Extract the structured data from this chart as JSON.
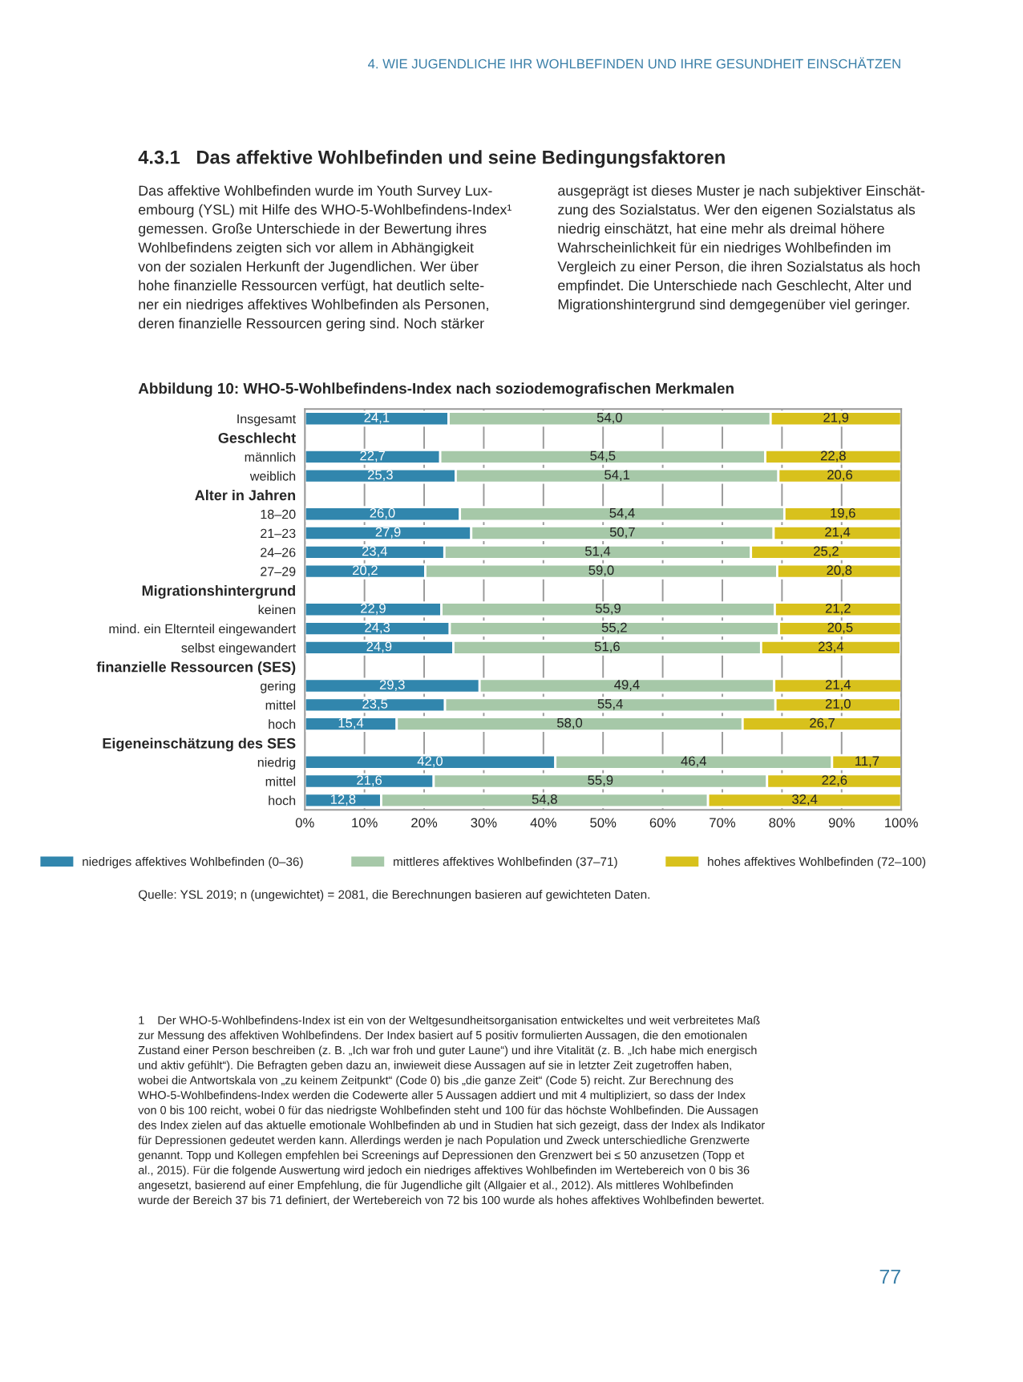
{
  "chart_data": {
    "type": "bar",
    "orientation": "horizontal",
    "stacked": true,
    "title": "Abbildung 10: WHO-5-Wohlbefindens-Index nach soziodemografischen Merkmalen",
    "categories": [
      "Insgesamt",
      "Geschlecht",
      "männlich",
      "weiblich",
      "Alter in Jahren",
      "18–20",
      "21–23",
      "24–26",
      "27–29",
      "Migrationshintergrund",
      "keinen",
      "mind. ein Elternteil eingewandert",
      "selbst eingewandert",
      "finanzielle Ressourcen (SES)",
      "gering",
      "mittel",
      "hoch",
      "Eigeneinschätzung des SES",
      "niedrig",
      "mittel",
      "hoch"
    ],
    "series": [
      {
        "name": "niedriges affektives Wohlbefinden (0–36)",
        "color": "#3186ad",
        "values": [
          24.1,
          null,
          22.7,
          25.3,
          null,
          26.0,
          27.9,
          23.4,
          20.2,
          null,
          22.9,
          24.3,
          24.9,
          null,
          29.3,
          23.5,
          15.4,
          null,
          42.0,
          21.6,
          12.8
        ],
        "value_labels": [
          "24,1",
          null,
          "22,7",
          "25,3",
          null,
          "26,0",
          "27,9",
          "23,4",
          "20,2",
          null,
          "22,9",
          "24,3",
          "24,9",
          null,
          "29,3",
          "23,5",
          "15,4",
          null,
          "42,0",
          "21,6",
          "12,8"
        ]
      },
      {
        "name": "mittleres affektives Wohlbefinden (37–71)",
        "color": "#a6c8a8",
        "values": [
          54.0,
          null,
          54.5,
          54.1,
          null,
          54.4,
          50.7,
          51.4,
          59.0,
          null,
          55.9,
          55.2,
          51.6,
          null,
          49.4,
          55.4,
          58.0,
          null,
          46.4,
          55.9,
          54.8
        ],
        "value_labels": [
          "54,0",
          null,
          "54,5",
          "54,1",
          null,
          "54,4",
          "50,7",
          "51,4",
          "59,0",
          null,
          "55,9",
          "55,2",
          "51,6",
          null,
          "49,4",
          "55,4",
          "58,0",
          null,
          "46,4",
          "55,9",
          "54,8"
        ]
      },
      {
        "name": "hohes affektives Wohlbefinden (72–100)",
        "color": "#d8c11c",
        "values": [
          21.9,
          null,
          22.8,
          20.6,
          null,
          19.6,
          21.4,
          25.2,
          20.8,
          null,
          21.2,
          20.5,
          23.4,
          null,
          21.4,
          21.0,
          26.7,
          null,
          11.7,
          22.6,
          32.4
        ],
        "value_labels": [
          "21,9",
          null,
          "22,8",
          "20,6",
          null,
          "19,6",
          "21,4",
          "25,2",
          "20,8",
          null,
          "21,2",
          "20,5",
          "23,4",
          null,
          "21,4",
          "21,0",
          "26,7",
          null,
          "11,7",
          "22,6",
          "32,4"
        ]
      }
    ],
    "xlim": [
      0,
      100
    ],
    "xticks": [
      {
        "value": 0,
        "label": "0%"
      },
      {
        "value": 10,
        "label": "10%"
      },
      {
        "value": 20,
        "label": "20%"
      },
      {
        "value": 30,
        "label": "30%"
      },
      {
        "value": 40,
        "label": "40%"
      },
      {
        "value": 50,
        "label": "50%"
      },
      {
        "value": 60,
        "label": "60%"
      },
      {
        "value": 70,
        "label": "70%"
      },
      {
        "value": 80,
        "label": "80%"
      },
      {
        "value": 90,
        "label": "90%"
      },
      {
        "value": 100,
        "label": "100%"
      }
    ],
    "grid": "x",
    "legend": "bottom",
    "annotations": [
      "4. WIE JUGENDLICHE IHR WOHLBEFINDEN UND IHRE GESUNDHEIT EINSCHÄTZEN",
      "4.3.1   Das affektive Wohlbefinden und seine Bedingungsfaktoren",
      "Das affektive Wohlbefinden wurde im Youth Survey Lux-\nembourg (YSL) mit Hilfe des WHO-5-Wohlbefindens-Index¹\ngemessen. Große Unterschiede in der Bewertung ihres\nWohlbefindens zeigten sich vor allem in Abhängigkeit\nvon der sozialen Herkunft der Jugendlichen. Wer über\nhohe finanzielle Ressourcen verfügt, hat deutlich selte-\nner ein niedriges affektives Wohlbefinden als Personen,\nderen finanzielle Ressourcen gering sind. Noch stärker",
      "ausgeprägt ist dieses Muster je nach subjektiver Einschät-\nzung des Sozialstatus. Wer den eigenen Sozialstatus als\nniedrig einschätzt, hat eine mehr als dreimal höhere\nWahrscheinlichkeit für ein niedriges Wohlbefinden im\nVergleich zu einer Person, die ihren Sozialstatus als hoch\nempfindet. Die Unterschiede nach Geschlecht, Alter und\nMigrationshintergrund sind demgegenüber viel geringer.",
      "Quelle: YSL 2019; n (ungewichtet) = 2081, die Berechnungen basieren auf gewichteten Daten.",
      "1    Der WHO-5-Wohlbefindens-Index ist ein von der Weltgesundheitsorganisation entwickeltes und weit verbreitetes Maß\nzur Messung des affektiven Wohlbefindens. Der Index basiert auf 5 positiv formulierten Aussagen, die den emotionalen\nZustand einer Person beschreiben (z. B. „Ich war froh und guter Laune“) und ihre Vitalität (z. B. „Ich habe mich energisch\nund aktiv gefühlt“). Die Befragten geben dazu an, inwieweit diese Aussagen auf sie in letzter Zeit zugetroffen haben,\nwobei die Antwortskala von „zu keinem Zeitpunkt“ (Code 0) bis „die ganze Zeit“ (Code 5) reicht. Zur Berechnung des\nWHO-5-Wohlbefindens-Index werden die Codewerte aller 5 Aussagen addiert und mit 4 multipliziert, so dass der Index\nvon 0 bis 100 reicht, wobei 0 für das niedrigste Wohlbefinden steht und 100 für das höchste Wohlbefinden. Die Aussagen\ndes Index zielen auf das aktuelle emotionale Wohlbefinden ab und in Studien hat sich gezeigt, dass der Index als Indikator\nfür Depressionen gedeutet werden kann. Allerdings werden je nach Population und Zweck unterschiedliche Grenzwerte\ngenannt. Topp und Kollegen empfehlen bei Screenings auf Depressionen den Grenzwert bei ≤ 50 anzusetzen (Topp et\nal., 2015). Für die folgende Auswertung wird jedoch ein niedriges affektives Wohlbefinden im Wertebereich von 0 bis 36\nangesetzt, basierend auf einer Empfehlung, die für Jugendliche gilt (Allgaier et al., 2012). Als mittleres Wohlbefinden\nwurde der Bereich 37 bis 71 definiert, der Wertebereich von 72 bis 100 wurde als hohes affektives Wohlbefinden bewertet.",
      "77"
    ]
  }
}
